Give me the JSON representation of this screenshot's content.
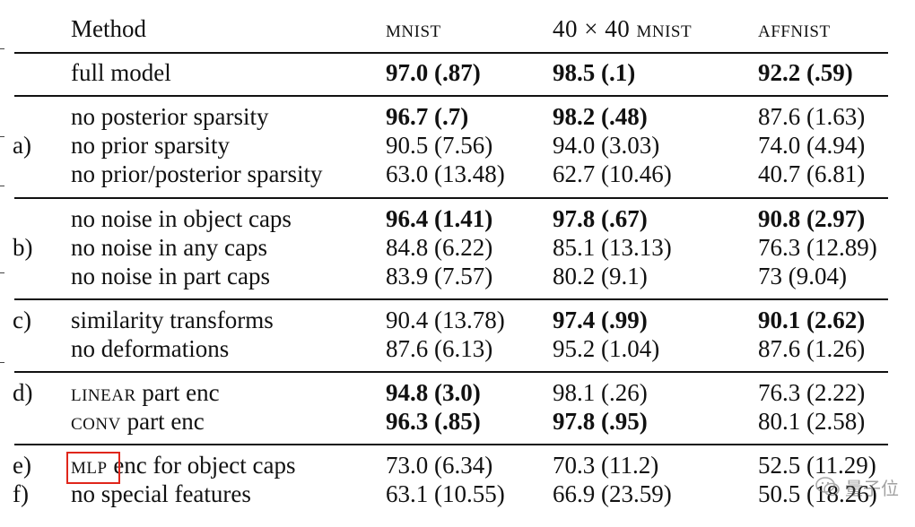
{
  "header": {
    "method": "Method",
    "col1": "mnist",
    "col2": "40 × 40 mnist",
    "col3": "affnist"
  },
  "rows": [
    {
      "group": "",
      "method": "full model",
      "v1": "97.0 (.87)",
      "v2": "98.5 (.1)",
      "v3": "92.2 (.59)"
    },
    {
      "group": "",
      "method": "no posterior sparsity",
      "v1": "96.7 (.7)",
      "v2": "98.2 (.48)",
      "v3": "87.6 (1.63)"
    },
    {
      "group": "a)",
      "method": "no prior sparsity",
      "v1": "90.5 (7.56)",
      "v2": "94.0 (3.03)",
      "v3": "74.0 (4.94)"
    },
    {
      "group": "",
      "method": "no prior/posterior sparsity",
      "v1": "63.0 (13.48)",
      "v2": "62.7 (10.46)",
      "v3": "40.7 (6.81)"
    },
    {
      "group": "",
      "method": "no noise in object caps",
      "v1": "96.4 (1.41)",
      "v2": "97.8 (.67)",
      "v3": "90.8 (2.97)"
    },
    {
      "group": "b)",
      "method": "no noise in any caps",
      "v1": "84.8 (6.22)",
      "v2": "85.1 (13.13)",
      "v3": "76.3 (12.89)"
    },
    {
      "group": "",
      "method": "no noise in part caps",
      "v1": "83.9 (7.57)",
      "v2": "80.2 (9.1)",
      "v3": "73 (9.04)"
    },
    {
      "group": "c)",
      "method": "similarity transforms",
      "v1": "90.4 (13.78)",
      "v2": "97.4 (.99)",
      "v3": "90.1 (2.62)"
    },
    {
      "group": "",
      "method": "no deformations",
      "v1": "87.6 (6.13)",
      "v2": "95.2 (1.04)",
      "v3": "87.6 (1.26)"
    },
    {
      "group": "d)",
      "method_sc": "linear",
      "method_rest": " part enc",
      "v1": "94.8 (3.0)",
      "v2": "98.1 (.26)",
      "v3": "76.3 (2.22)"
    },
    {
      "group": "",
      "method_sc": "conv",
      "method_rest": " part enc",
      "v1": "96.3 (.85)",
      "v2": "97.8 (.95)",
      "v3": "80.1 (2.58)"
    },
    {
      "group": "e)",
      "method_sc": "mlp",
      "method_rest": " enc for object caps",
      "v1": "73.0 (6.34)",
      "v2": "70.3 (11.2)",
      "v3": "52.5 (11.29)"
    },
    {
      "group": "f)",
      "method": "no special features",
      "v1": "63.1 (10.55)",
      "v2": "66.9 (23.59)",
      "v3": "50.5 (18.26)"
    }
  ],
  "watermark": {
    "text": "量子位",
    "icon": "wechat-icon"
  },
  "colors": {
    "highlight_box": "#e0261b"
  }
}
